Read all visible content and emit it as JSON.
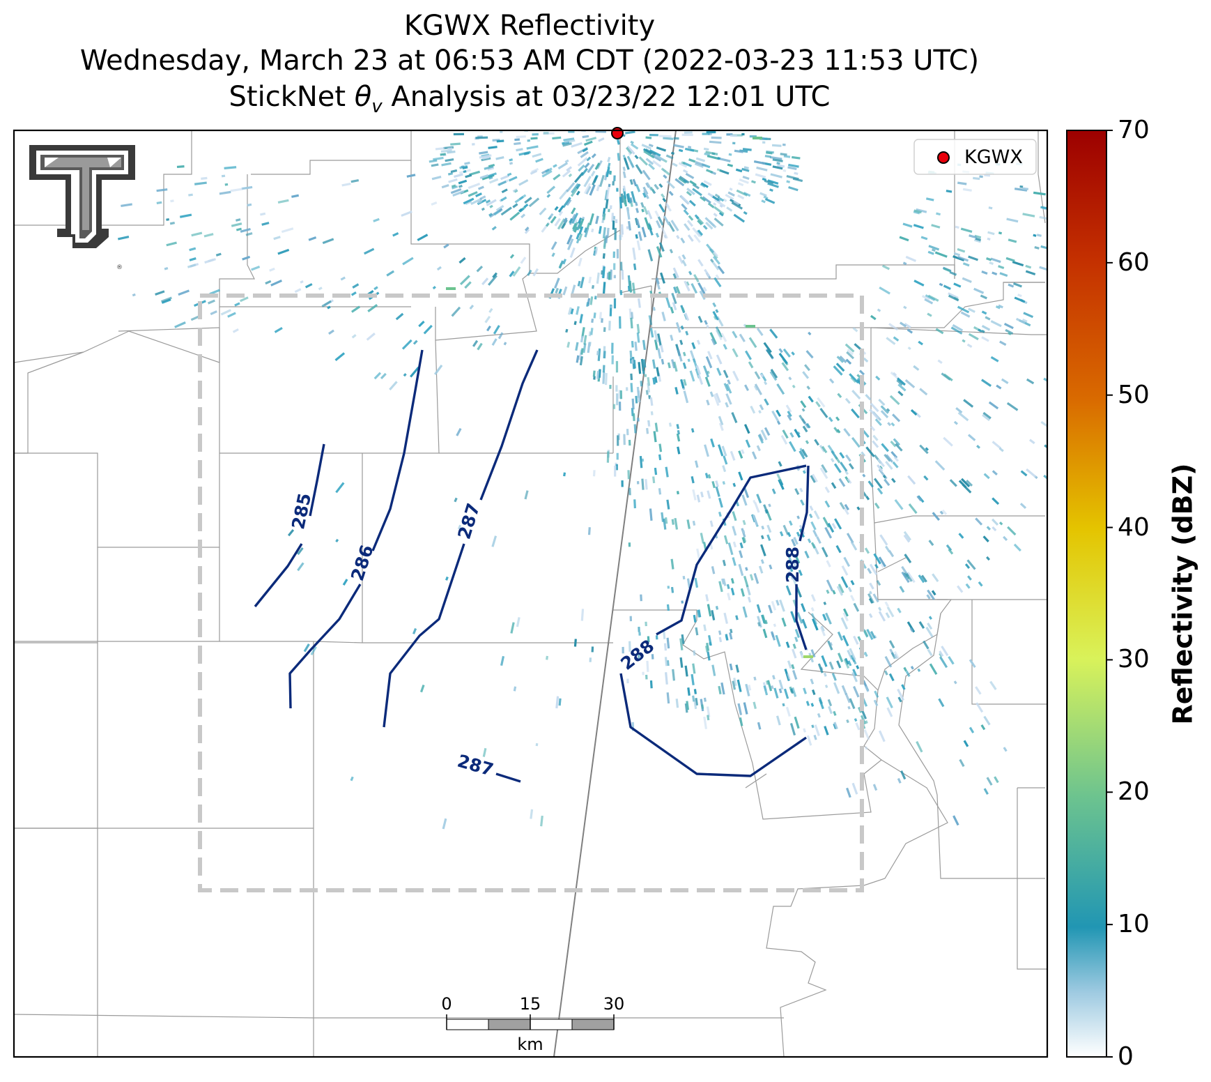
{
  "title": {
    "line1": "KGWX Reflectivity",
    "line2": "Wednesday, March 23 at 06:53 AM CDT (2022-03-23 11:53 UTC)",
    "line3_prefix": "StickNet ",
    "line3_symbol": "θ",
    "line3_subscript": "v",
    "line3_suffix": " Analysis at 03/23/22 12:01 UTC"
  },
  "legend": {
    "label": "KGWX",
    "marker_color": "#e8000b"
  },
  "colorbar": {
    "label": "Reflectivity (dBZ)",
    "ticks": [
      "0",
      "10",
      "20",
      "30",
      "40",
      "50",
      "60",
      "70"
    ],
    "range": [
      0,
      70
    ],
    "colors": [
      "#ffffff",
      "#9ecae1",
      "#2196b3",
      "#6cc38f",
      "#d9f25a",
      "#e4c400",
      "#d96a00",
      "#9c0000"
    ]
  },
  "scalebar": {
    "ticks": [
      "0",
      "15",
      "30"
    ],
    "unit": "km"
  },
  "contours": {
    "color": "#0b2a7a",
    "labels": [
      "285",
      "286",
      "287",
      "287",
      "288",
      "288"
    ]
  },
  "radar_site": {
    "name": "KGWX",
    "color": "#e8000b"
  },
  "analysis_box": {
    "color": "#c8c8c8",
    "style": "dashed"
  }
}
